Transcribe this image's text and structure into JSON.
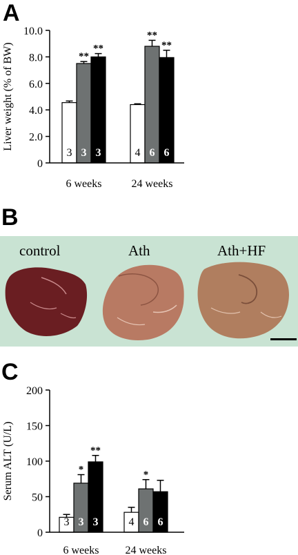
{
  "panels": {
    "a": {
      "letter": "A"
    },
    "b": {
      "letter": "B"
    },
    "c": {
      "letter": "C"
    }
  },
  "colors": {
    "control": "#ffffff",
    "ath": "#6e7272",
    "ath_hf": "#000000",
    "photo_background": "#c9e3d3",
    "liver_control": "#6a1e22",
    "liver_ath": "#b87a63",
    "liver_ath_hf": "#b07e5f"
  },
  "photo": {
    "labels": [
      "control",
      "Ath",
      "Ath+HF"
    ],
    "scale_bar": true
  },
  "chart_data": [
    {
      "type": "bar",
      "panel": "A",
      "categories": [
        "6 weeks",
        "24 weeks"
      ],
      "ylabel": "Liver weight (% of BW)",
      "ylim": [
        0,
        10
      ],
      "yticks": [
        "0",
        "2.0",
        "4.0",
        "6.0",
        "8.0",
        "10.0"
      ],
      "grid": false,
      "series": [
        {
          "values": [
            4.55,
            4.4
          ],
          "errors": [
            0.12,
            0.06
          ],
          "n": [
            "3",
            "4"
          ],
          "sig": [
            "",
            ""
          ]
        },
        {
          "values": [
            7.5,
            8.8
          ],
          "errors": [
            0.15,
            0.45
          ],
          "n": [
            "3",
            "6"
          ],
          "sig": [
            "**",
            "**"
          ]
        },
        {
          "values": [
            8.0,
            7.95
          ],
          "errors": [
            0.25,
            0.55
          ],
          "n": [
            "3",
            "6"
          ],
          "sig": [
            "**",
            "**"
          ]
        }
      ]
    },
    {
      "type": "bar",
      "panel": "C",
      "categories": [
        "6 weeks",
        "24 weeks"
      ],
      "ylabel": "Serum ALT (U/L)",
      "ylim": [
        0,
        200
      ],
      "yticks": [
        "0",
        "50",
        "100",
        "150",
        "200"
      ],
      "grid": false,
      "series": [
        {
          "values": [
            21,
            28
          ],
          "errors": [
            4,
            7
          ],
          "n": [
            "3",
            "4"
          ],
          "sig": [
            "",
            ""
          ]
        },
        {
          "values": [
            69,
            61
          ],
          "errors": [
            12,
            13
          ],
          "n": [
            "3",
            "6"
          ],
          "sig": [
            "*",
            "*"
          ]
        },
        {
          "values": [
            99,
            57
          ],
          "errors": [
            9,
            16
          ],
          "n": [
            "3",
            "6"
          ],
          "sig": [
            "**",
            ""
          ]
        }
      ]
    }
  ]
}
